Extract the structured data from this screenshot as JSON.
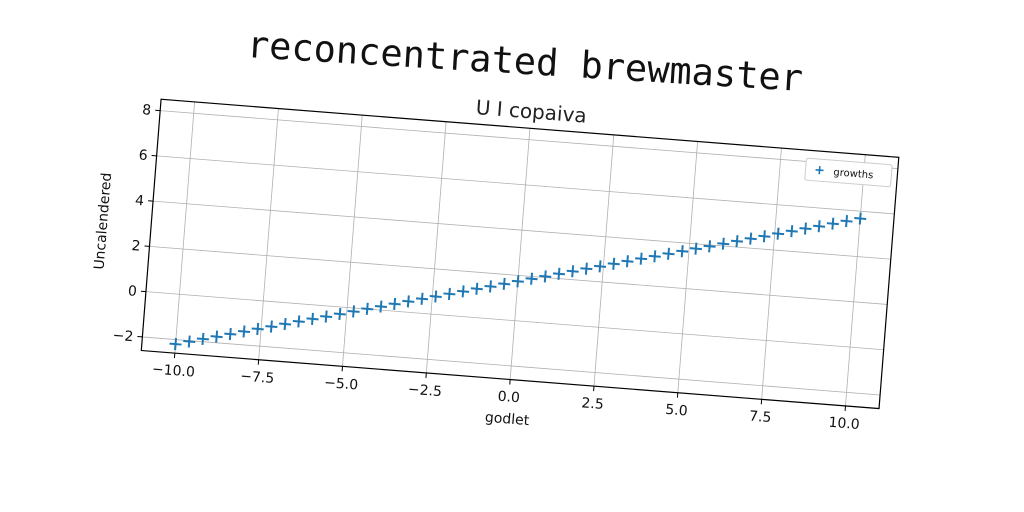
{
  "suptitle": "reconcentrated brewmaster",
  "chart_data": {
    "type": "scatter",
    "title": "U I copaiva",
    "xlabel": "godlet",
    "ylabel": "Uncalendered",
    "xlim": [
      -11,
      11
    ],
    "ylim": [
      -2.6,
      8.5
    ],
    "xticks": [
      -10.0,
      -7.5,
      -5.0,
      -2.5,
      0.0,
      2.5,
      5.0,
      7.5,
      10.0
    ],
    "xtick_labels": [
      "−10.0",
      "−7.5",
      "−5.0",
      "−2.5",
      "0.0",
      "2.5",
      "5.0",
      "7.5",
      "10.0"
    ],
    "yticks": [
      -2,
      0,
      2,
      4,
      6,
      8
    ],
    "ytick_labels": [
      "−2",
      "0",
      "2",
      "4",
      "6",
      "8"
    ],
    "grid": true,
    "legend": {
      "placement": "top-right",
      "entries": [
        "growths"
      ]
    },
    "series": [
      {
        "name": "growths",
        "marker": "+",
        "color": "#1f77b4",
        "x": [
          -10.0,
          -9.6,
          -9.2,
          -8.8,
          -8.4,
          -8.0,
          -7.6,
          -7.2,
          -6.8,
          -6.4,
          -6.0,
          -5.6,
          -5.2,
          -4.8,
          -4.4,
          -4.0,
          -3.6,
          -3.2,
          -2.8,
          -2.4,
          -2.0,
          -1.6,
          -1.2,
          -0.8,
          -0.4,
          0.0,
          0.4,
          0.8,
          1.2,
          1.6,
          2.0,
          2.4,
          2.8,
          3.2,
          3.6,
          4.0,
          4.4,
          4.8,
          5.2,
          5.6,
          6.0,
          6.4,
          6.8,
          7.2,
          7.6,
          8.0,
          8.4,
          8.8,
          9.2,
          9.6,
          10.0
        ],
        "y": [
          -2.2,
          -2.04,
          -1.88,
          -1.73,
          -1.57,
          -1.41,
          -1.25,
          -1.1,
          -0.94,
          -0.78,
          -0.62,
          -0.47,
          -0.31,
          -0.15,
          0.01,
          0.16,
          0.32,
          0.48,
          0.64,
          0.79,
          0.95,
          1.11,
          1.27,
          1.42,
          1.58,
          1.74,
          1.9,
          2.05,
          2.21,
          2.37,
          2.53,
          2.68,
          2.84,
          3.0,
          3.16,
          3.31,
          3.47,
          3.63,
          3.79,
          3.94,
          4.1,
          4.26,
          4.42,
          4.57,
          4.73,
          4.89,
          5.05,
          5.2,
          5.36,
          5.52,
          5.68
        ]
      }
    ],
    "colors": {
      "series": "#1f77b4",
      "grid": "#b0b0b0",
      "axes": "#000000"
    }
  }
}
